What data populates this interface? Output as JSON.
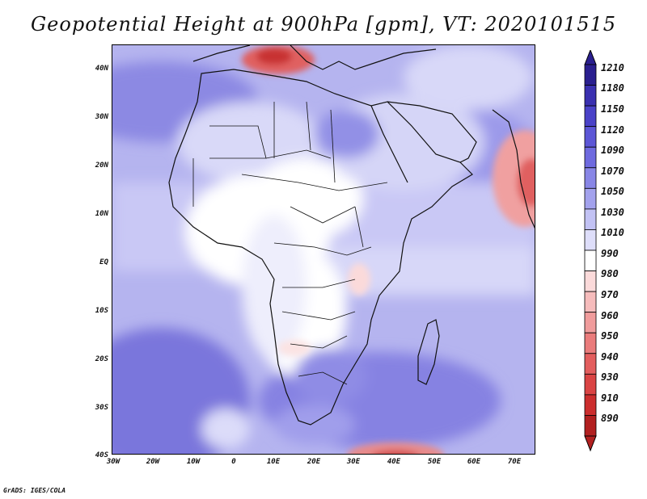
{
  "title": "Geopotential Height at 900hPa [gpm], VT: 2020101515",
  "credit": "GrADS: IGES/COLA",
  "map": {
    "region": "Africa",
    "lon_range": [
      -30,
      75
    ],
    "lat_range": [
      -40,
      45
    ]
  },
  "axes": {
    "lat_labels": [
      "40N",
      "30N",
      "20N",
      "10N",
      "EQ",
      "10S",
      "20S",
      "30S",
      "40S"
    ],
    "lon_labels": [
      "30W",
      "20W",
      "10W",
      "0",
      "10E",
      "20E",
      "30E",
      "40E",
      "50E",
      "60E",
      "70E"
    ]
  },
  "colorbar": {
    "labels": [
      "1210",
      "1180",
      "1150",
      "1120",
      "1090",
      "1070",
      "1050",
      "1030",
      "1010",
      "990",
      "980",
      "970",
      "960",
      "950",
      "940",
      "930",
      "910",
      "890"
    ],
    "colors": [
      "#2a1f8f",
      "#3a30b0",
      "#4a42c8",
      "#5c56d6",
      "#6e6adf",
      "#8886e6",
      "#a3a2ed",
      "#c2c2f4",
      "#dedefa",
      "#ffffff",
      "#fbdada",
      "#f6bcbc",
      "#f09c9c",
      "#ea7c7c",
      "#e35e5e",
      "#da4444",
      "#cc2e2e",
      "#b22020"
    ]
  }
}
